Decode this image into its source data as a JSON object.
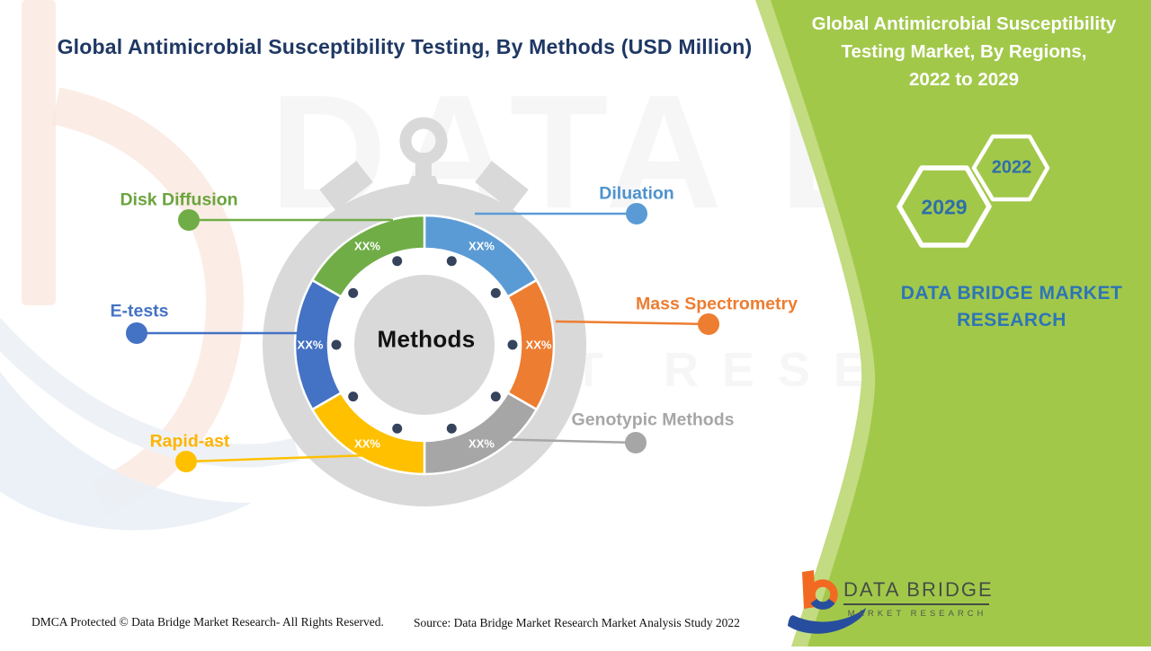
{
  "main_title": "Global Antimicrobial Susceptibility Testing, By Methods (USD Million)",
  "chart_data": {
    "type": "pie",
    "subtype": "donut-stopwatch-infographic",
    "title": "Global Antimicrobial Susceptibility Testing, By Methods (USD Million)",
    "center_label": "Methods",
    "value_placeholder": "XX%",
    "legend_position": "callouts-around",
    "segments": [
      {
        "label": "Diluation",
        "value": "XX%",
        "color": "#5B9BD5",
        "label_color": "#4E92CE"
      },
      {
        "label": "Mass Spectrometry",
        "value": "XX%",
        "color": "#ED7D31",
        "label_color": "#ED7D31"
      },
      {
        "label": "Genotypic Methods",
        "value": "XX%",
        "color": "#A6A6A6",
        "label_color": "#A6A6A6"
      },
      {
        "label": "Rapid-ast",
        "value": "XX%",
        "color": "#FFC000",
        "label_color": "#FFB400"
      },
      {
        "label": "E-tests",
        "value": "XX%",
        "color": "#4472C4",
        "label_color": "#4472C4"
      },
      {
        "label": "Disk Diffusion",
        "value": "XX%",
        "color": "#70AD47",
        "label_color": "#6BA43E"
      }
    ]
  },
  "side_panel": {
    "title_lines": [
      "Global Antimicrobial Susceptibility",
      "Testing Market, By Regions,",
      "2022 to 2029"
    ],
    "years": [
      {
        "value": "2029"
      },
      {
        "value": "2022"
      }
    ],
    "brand": "DATA BRIDGE MARKET RESEARCH",
    "background_color": "#A2C84A",
    "year_text_color": "#2E6FA8",
    "brand_text_color": "#2E75B6"
  },
  "footer": {
    "dmca": "DMCA Protected © Data Bridge Market Research- All Rights Reserved.",
    "source": "Source: Data Bridge Market Research Market Analysis Study 2022"
  },
  "logo": {
    "name": "DATA BRIDGE",
    "subtext": "MARKET RESEARCH"
  },
  "watermark": {
    "line1": "DATA BRIDGE",
    "line2": "MARKET RESEARCH"
  }
}
